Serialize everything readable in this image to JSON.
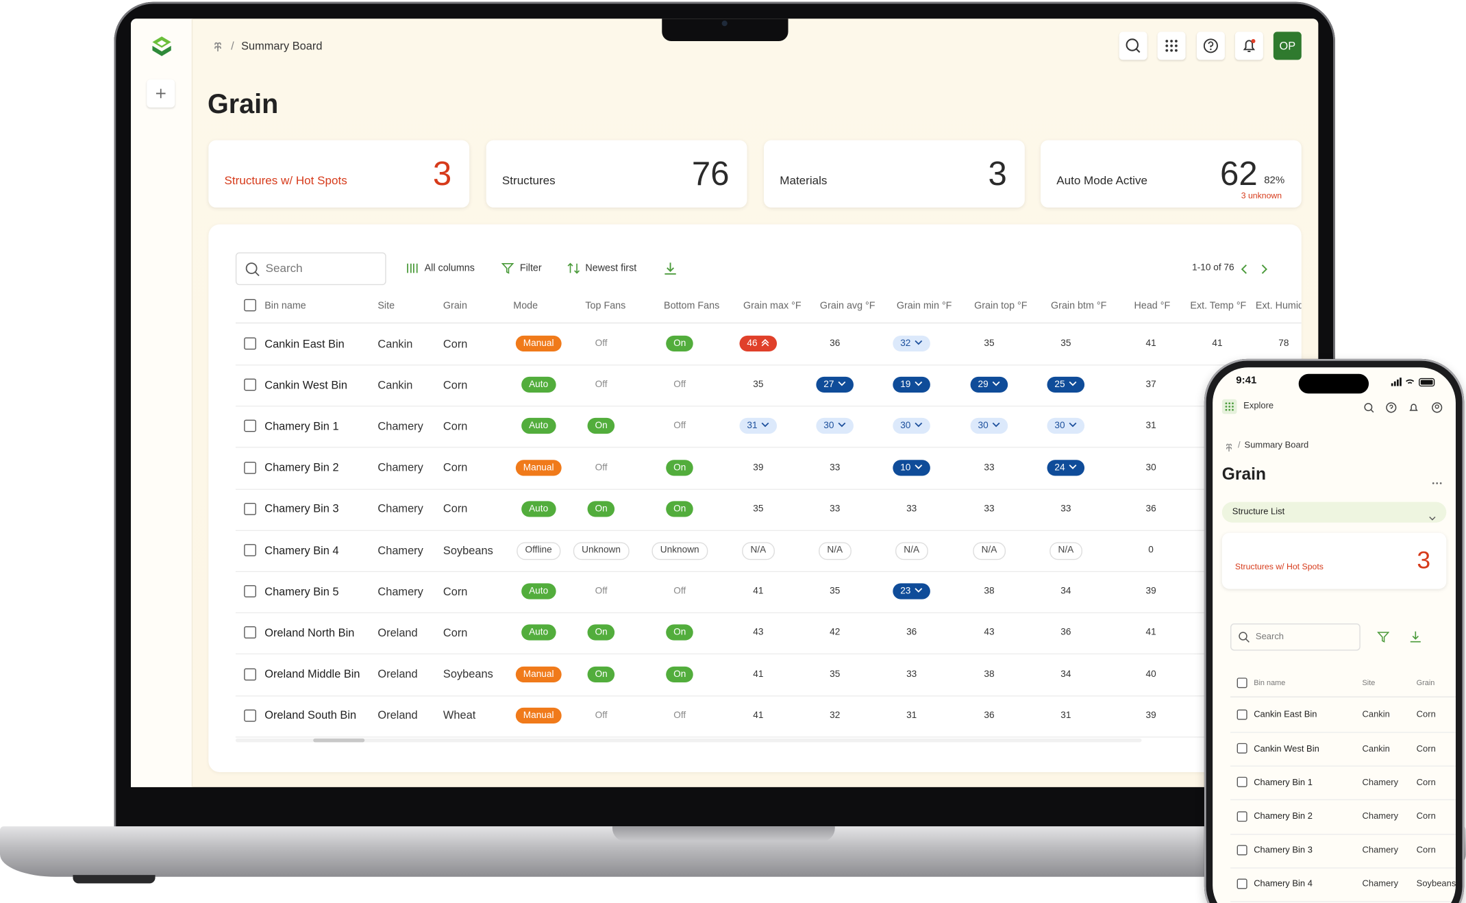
{
  "laptop": {
    "breadcrumb": "Summary Board",
    "avatar": "OP",
    "title": "Grain",
    "cards": [
      {
        "label": "Structures w/ Hot Spots",
        "value": 3
      },
      {
        "label": "Structures",
        "value": 76
      },
      {
        "label": "Materials",
        "value": 3
      },
      {
        "label": "Auto Mode Active",
        "value": 62,
        "percent": "82%",
        "note": "3 unknown"
      }
    ],
    "toolbar": {
      "search": "Search",
      "columns": "All columns",
      "filter": "Filter",
      "sort": "Newest first",
      "pagination": "1-10 of 76"
    },
    "table": {
      "columns": [
        "Bin name",
        "Site",
        "Grain",
        "Mode",
        "Top Fans",
        "Bottom Fans",
        "Grain max °F",
        "Grain avg °F",
        "Grain min °F",
        "Grain top °F",
        "Grain btm °F",
        "Head °F",
        "Ext. Temp °F",
        "Ext. Humid"
      ],
      "rows": [
        [
          "Cankin East Bin",
          "Cankin",
          "Corn",
          "Manual",
          "Off",
          "On",
          46,
          36,
          32,
          35,
          35,
          41,
          41,
          78
        ],
        [
          "Cankin West Bin",
          "Cankin",
          "Corn",
          "Auto",
          "Off",
          "Off",
          35,
          27,
          19,
          29,
          25,
          37
        ],
        [
          "Chamery Bin 1",
          "Chamery",
          "Corn",
          "Auto",
          "On",
          "Off",
          31,
          30,
          30,
          30,
          30,
          31
        ],
        [
          "Chamery Bin 2",
          "Chamery",
          "Corn",
          "Manual",
          "Off",
          "On",
          39,
          33,
          10,
          33,
          24,
          30
        ],
        [
          "Chamery Bin 3",
          "Chamery",
          "Corn",
          "Auto",
          "On",
          "On",
          35,
          33,
          33,
          33,
          33,
          36
        ],
        [
          "Chamery Bin 4",
          "Chamery",
          "Soybeans",
          "Offline",
          "Unknown",
          "Unknown",
          "N/A",
          "N/A",
          "N/A",
          "N/A",
          "N/A",
          0
        ],
        [
          "Chamery Bin 5",
          "Chamery",
          "Corn",
          "Auto",
          "Off",
          "Off",
          41,
          35,
          23,
          38,
          34,
          39
        ],
        [
          "Oreland North Bin",
          "Oreland",
          "Corn",
          "Auto",
          "On",
          "On",
          43,
          42,
          36,
          43,
          36,
          41
        ],
        [
          "Oreland Middle Bin",
          "Oreland",
          "Soybeans",
          "Manual",
          "On",
          "On",
          41,
          35,
          33,
          38,
          34,
          40
        ],
        [
          "Oreland South Bin",
          "Oreland",
          "Wheat",
          "Manual",
          "Off",
          "Off",
          41,
          32,
          31,
          36,
          31,
          39
        ]
      ]
    }
  },
  "phone": {
    "time": "9:41",
    "explore": "Explore",
    "breadcrumb": "Summary Board",
    "title": "Grain",
    "structure_list": "Structure List",
    "card": {
      "label": "Structures w/ Hot Spots",
      "value": 3
    },
    "search": "Search",
    "columns": [
      "Bin name",
      "Site",
      "Grain"
    ],
    "rows": [
      [
        "Cankin East Bin",
        "Cankin",
        "Corn"
      ],
      [
        "Cankin West Bin",
        "Cankin",
        "Corn"
      ],
      [
        "Chamery Bin 1",
        "Chamery",
        "Corn"
      ],
      [
        "Chamery Bin 2",
        "Chamery",
        "Corn"
      ],
      [
        "Chamery Bin 3",
        "Chamery",
        "Corn"
      ],
      [
        "Chamery Bin 4",
        "Chamery",
        "Soybeans"
      ]
    ]
  }
}
